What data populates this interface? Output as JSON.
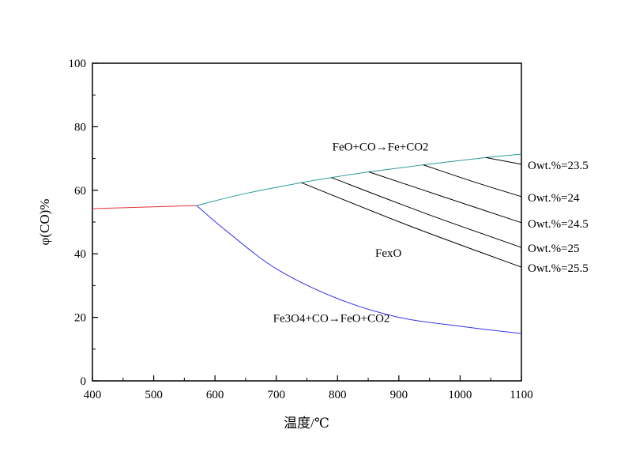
{
  "chart_data": {
    "type": "line",
    "title": "",
    "xlabel": "温度/℃",
    "ylabel": "φ(CO)%",
    "xlim": [
      400,
      1100
    ],
    "ylim": [
      0,
      100
    ],
    "xticks": [
      400,
      500,
      600,
      700,
      800,
      900,
      1000,
      1100
    ],
    "yticks": [
      0,
      20,
      40,
      60,
      80,
      100
    ],
    "grid": false,
    "series": [
      {
        "color": "#e8303a",
        "x": [
          400,
          570
        ],
        "y": [
          54.2,
          55.2
        ]
      },
      {
        "color": "#2a9a9a",
        "x": [
          570,
          650,
          741,
          790,
          851,
          940,
          1042,
          1100
        ],
        "y": [
          55.2,
          59.0,
          62.4,
          64.0,
          65.8,
          68.0,
          70.3,
          71.4
        ]
      },
      {
        "color": "#3333ee",
        "x": [
          570,
          620,
          700,
          800,
          900,
          1000,
          1100
        ],
        "y": [
          55.2,
          47.0,
          35.3,
          25.9,
          20.0,
          17.2,
          14.9
        ]
      },
      {
        "name": "Owt.%=23.5",
        "color": "#000000",
        "x": [
          1042,
          1100
        ],
        "y": [
          70.3,
          68.2
        ]
      },
      {
        "name": "Owt.%=24",
        "color": "#000000",
        "x": [
          940,
          1020,
          1100
        ],
        "y": [
          68.0,
          62.8,
          58.0
        ]
      },
      {
        "name": "Owt.%=24.5",
        "color": "#000000",
        "x": [
          851,
          975,
          1100
        ],
        "y": [
          65.8,
          57.8,
          49.8
        ]
      },
      {
        "name": "Owt.%=25",
        "color": "#000000",
        "x": [
          790,
          945,
          1100
        ],
        "y": [
          64.0,
          52.6,
          42.0
        ]
      },
      {
        "name": "Owt.%=25.5",
        "color": "#000000",
        "x": [
          741,
          920,
          1100
        ],
        "y": [
          62.4,
          48.6,
          35.8
        ]
      }
    ],
    "annotations": [
      {
        "text": "FeO+CO→Fe+CO2",
        "x": 870,
        "y": 72.5
      },
      {
        "text": "FexO",
        "x": 883,
        "y": 39
      },
      {
        "text": "Fe3O4+CO→FeO+CO2",
        "x": 790,
        "y": 18.5
      }
    ]
  }
}
